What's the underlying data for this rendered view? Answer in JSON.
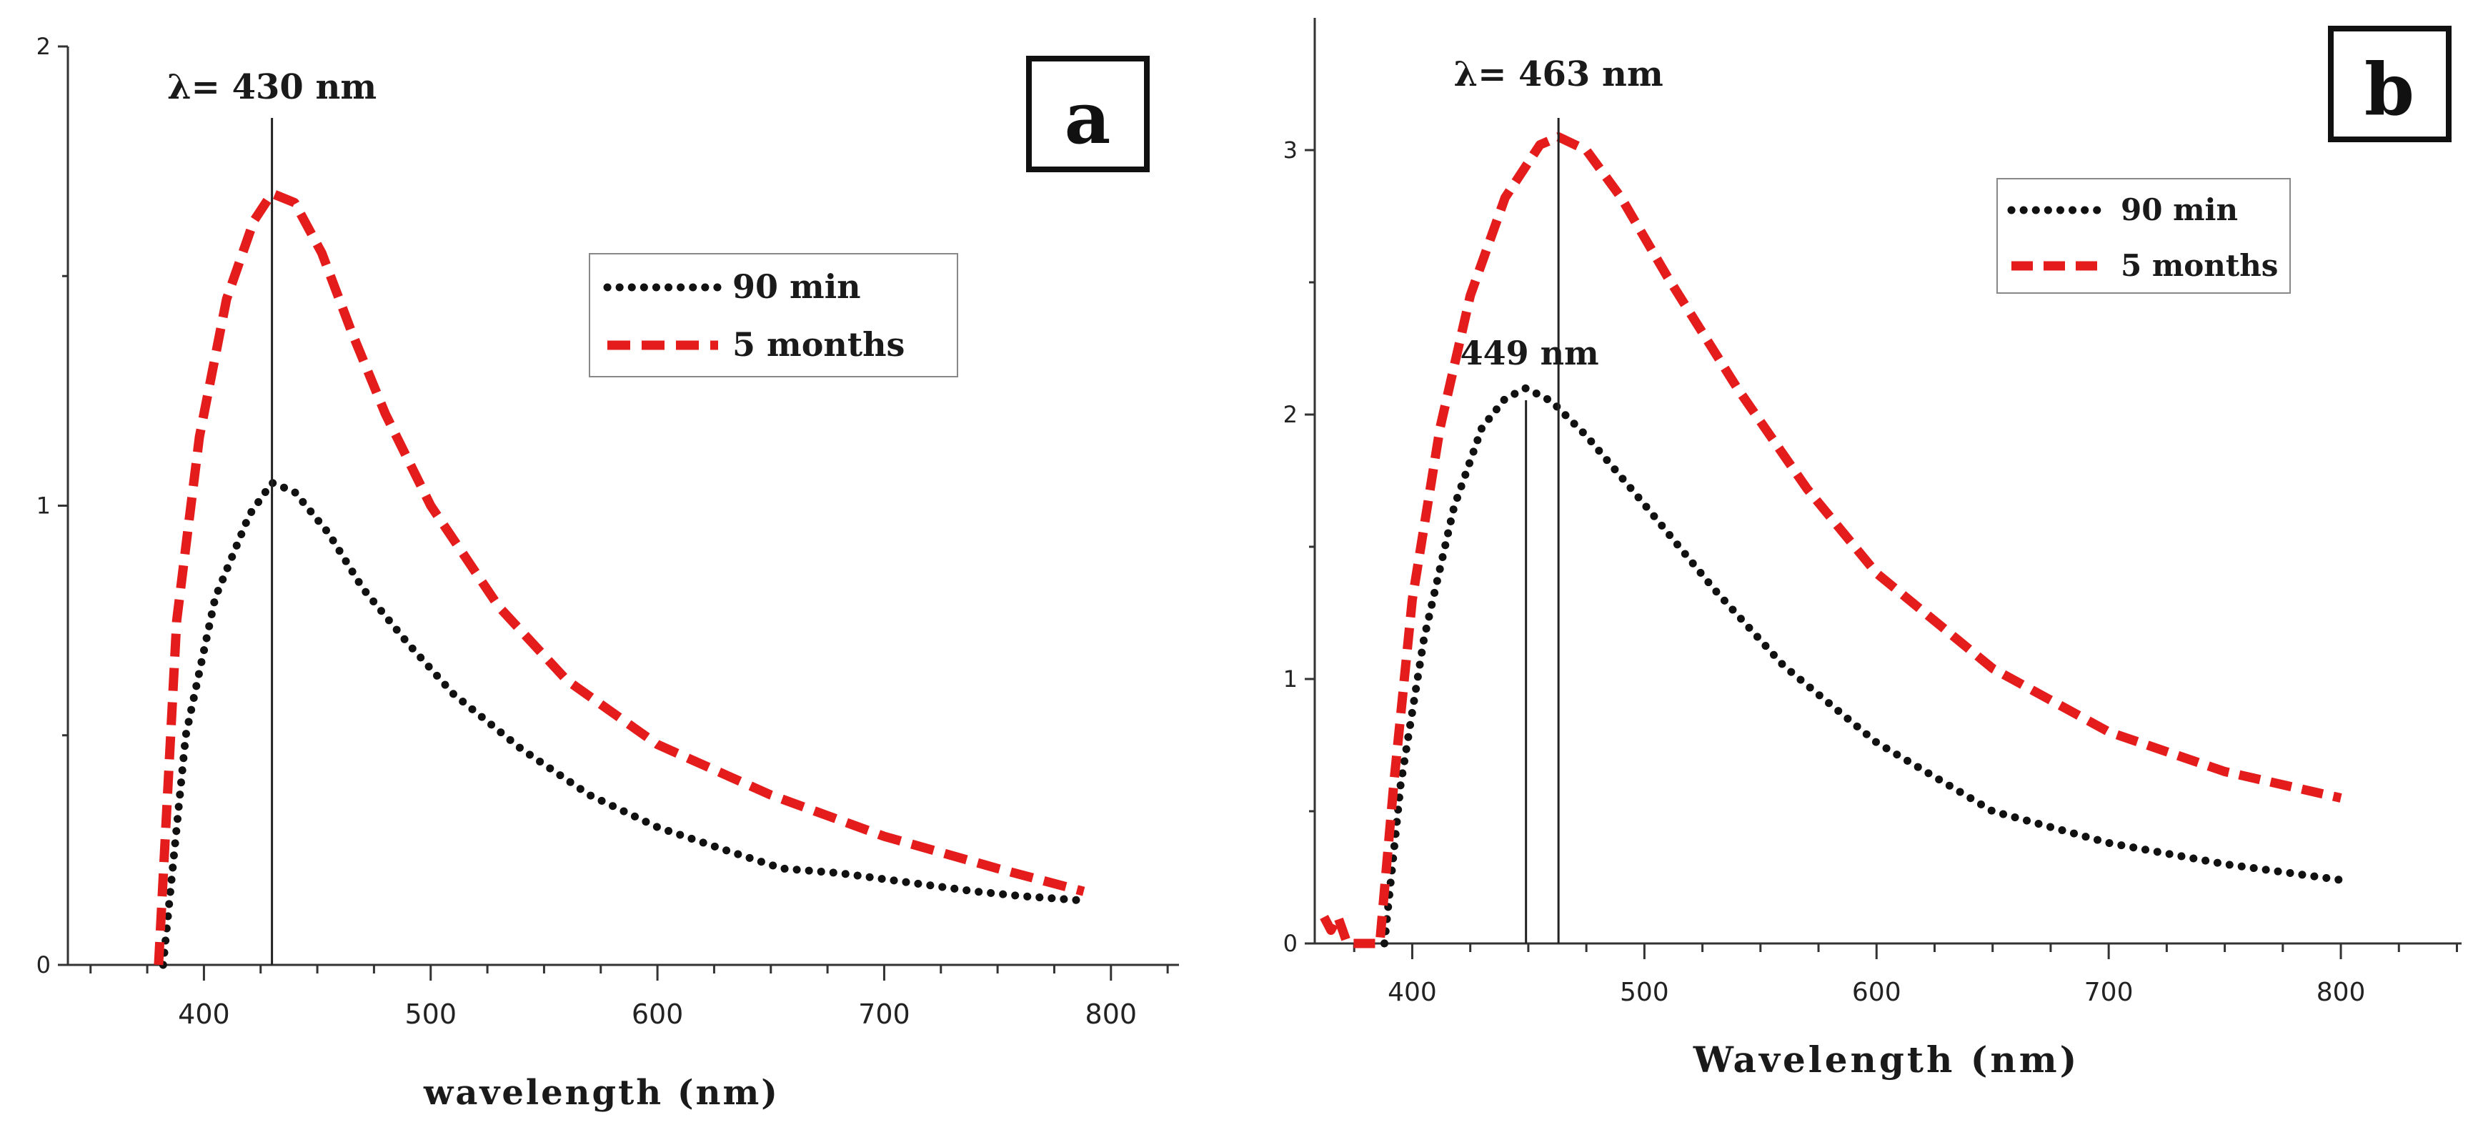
{
  "chart_data": [
    {
      "type": "line",
      "panel": "a",
      "title": "",
      "xlabel": "wavelength (nm)",
      "ylabel": "",
      "xlim": [
        340,
        830
      ],
      "ylim": [
        0,
        2
      ],
      "xticks": [
        400,
        500,
        600,
        700,
        800
      ],
      "yticks": [
        0,
        1,
        2
      ],
      "grid": false,
      "legend": "upper-right",
      "annotations": [
        {
          "text": "λ= 430 nm",
          "x": 430
        }
      ],
      "series": [
        {
          "name": "90 min",
          "style": "dotted",
          "color": "#111111",
          "x": [
            382,
            392,
            405,
            420,
            430,
            440,
            455,
            470,
            490,
            510,
            540,
            570,
            600,
            630,
            655,
            680,
            710,
            740,
            760,
            788
          ],
          "y": [
            0.0,
            0.5,
            0.8,
            0.98,
            1.05,
            1.03,
            0.94,
            0.82,
            0.7,
            0.59,
            0.47,
            0.37,
            0.3,
            0.25,
            0.21,
            0.2,
            0.18,
            0.16,
            0.15,
            0.14
          ]
        },
        {
          "name": "5 months",
          "style": "dashed",
          "color": "#e51c1c",
          "x": [
            380,
            388,
            398,
            410,
            422,
            430,
            440,
            452,
            465,
            480,
            500,
            530,
            560,
            600,
            650,
            700,
            750,
            788
          ],
          "y": [
            0.0,
            0.75,
            1.15,
            1.45,
            1.62,
            1.68,
            1.66,
            1.55,
            1.38,
            1.2,
            1.0,
            0.78,
            0.62,
            0.48,
            0.37,
            0.28,
            0.21,
            0.16
          ]
        }
      ]
    },
    {
      "type": "line",
      "panel": "b",
      "title": "",
      "xlabel": "Wavelength (nm)",
      "ylabel": "",
      "xlim": [
        358,
        852
      ],
      "ylim": [
        0,
        3.5
      ],
      "xticks": [
        400,
        500,
        600,
        700,
        800
      ],
      "yticks": [
        0,
        1,
        2,
        3
      ],
      "grid": false,
      "legend": "upper-right",
      "annotations": [
        {
          "text": "λ= 463 nm",
          "x": 463
        },
        {
          "text": "449 nm",
          "x": 449
        }
      ],
      "series": [
        {
          "name": "90 min",
          "style": "dotted",
          "color": "#111111",
          "x": [
            388,
            395,
            405,
            418,
            430,
            440,
            449,
            460,
            475,
            500,
            530,
            560,
            600,
            650,
            700,
            750,
            800
          ],
          "y": [
            0.0,
            0.6,
            1.15,
            1.65,
            1.95,
            2.06,
            2.1,
            2.05,
            1.92,
            1.66,
            1.34,
            1.05,
            0.76,
            0.5,
            0.38,
            0.3,
            0.24
          ]
        },
        {
          "name": "5 months",
          "style": "dashed",
          "color": "#e51c1c",
          "x": [
            362,
            365,
            368,
            372,
            386,
            392,
            400,
            412,
            425,
            440,
            455,
            463,
            475,
            490,
            510,
            540,
            570,
            600,
            650,
            700,
            750,
            800
          ],
          "y": [
            0.1,
            0.05,
            0.1,
            0.0,
            0.0,
            0.6,
            1.3,
            1.95,
            2.45,
            2.82,
            3.02,
            3.05,
            3.0,
            2.82,
            2.52,
            2.1,
            1.72,
            1.4,
            1.04,
            0.8,
            0.65,
            0.55
          ]
        }
      ]
    }
  ]
}
